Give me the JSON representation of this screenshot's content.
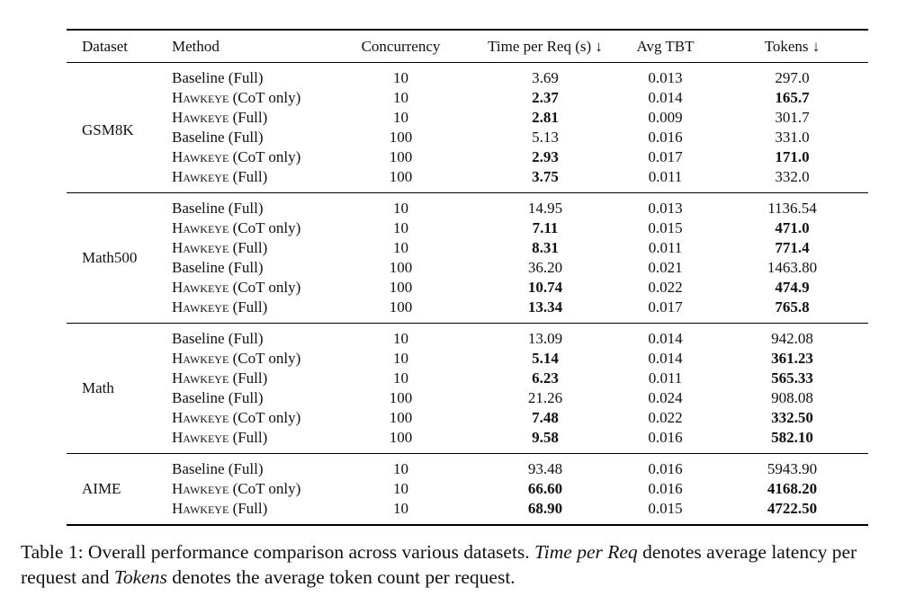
{
  "table": {
    "headers": [
      "Dataset",
      "Method",
      "Concurrency",
      "Time per Req (s) ↓",
      "Avg TBT",
      "Tokens ↓"
    ],
    "groups": [
      {
        "dataset": "GSM8K",
        "rows": [
          {
            "method": "Baseline (Full)",
            "concurrency": "10",
            "time": "3.69",
            "tbt": "0.013",
            "tokens": "297.0",
            "bold_time": false,
            "bold_tokens": false
          },
          {
            "method": "Hawkeye (CoT only)",
            "concurrency": "10",
            "time": "2.37",
            "tbt": "0.014",
            "tokens": "165.7",
            "bold_time": true,
            "bold_tokens": true
          },
          {
            "method": "Hawkeye (Full)",
            "concurrency": "10",
            "time": "2.81",
            "tbt": "0.009",
            "tokens": "301.7",
            "bold_time": true,
            "bold_tokens": false
          },
          {
            "method": "Baseline (Full)",
            "concurrency": "100",
            "time": "5.13",
            "tbt": "0.016",
            "tokens": "331.0",
            "bold_time": false,
            "bold_tokens": false
          },
          {
            "method": "Hawkeye (CoT only)",
            "concurrency": "100",
            "time": "2.93",
            "tbt": "0.017",
            "tokens": "171.0",
            "bold_time": true,
            "bold_tokens": true
          },
          {
            "method": "Hawkeye (Full)",
            "concurrency": "100",
            "time": "3.75",
            "tbt": "0.011",
            "tokens": "332.0",
            "bold_time": true,
            "bold_tokens": false
          }
        ]
      },
      {
        "dataset": "Math500",
        "rows": [
          {
            "method": "Baseline (Full)",
            "concurrency": "10",
            "time": "14.95",
            "tbt": "0.013",
            "tokens": "1136.54",
            "bold_time": false,
            "bold_tokens": false
          },
          {
            "method": "Hawkeye (CoT only)",
            "concurrency": "10",
            "time": "7.11",
            "tbt": "0.015",
            "tokens": "471.0",
            "bold_time": true,
            "bold_tokens": true
          },
          {
            "method": "Hawkeye (Full)",
            "concurrency": "10",
            "time": "8.31",
            "tbt": "0.011",
            "tokens": "771.4",
            "bold_time": true,
            "bold_tokens": true
          },
          {
            "method": "Baseline (Full)",
            "concurrency": "100",
            "time": "36.20",
            "tbt": "0.021",
            "tokens": "1463.80",
            "bold_time": false,
            "bold_tokens": false
          },
          {
            "method": "Hawkeye (CoT only)",
            "concurrency": "100",
            "time": "10.74",
            "tbt": "0.022",
            "tokens": "474.9",
            "bold_time": true,
            "bold_tokens": true
          },
          {
            "method": "Hawkeye (Full)",
            "concurrency": "100",
            "time": "13.34",
            "tbt": "0.017",
            "tokens": "765.8",
            "bold_time": true,
            "bold_tokens": true
          }
        ]
      },
      {
        "dataset": "Math",
        "rows": [
          {
            "method": "Baseline (Full)",
            "concurrency": "10",
            "time": "13.09",
            "tbt": "0.014",
            "tokens": "942.08",
            "bold_time": false,
            "bold_tokens": false
          },
          {
            "method": "Hawkeye (CoT only)",
            "concurrency": "10",
            "time": "5.14",
            "tbt": "0.014",
            "tokens": "361.23",
            "bold_time": true,
            "bold_tokens": true
          },
          {
            "method": "Hawkeye (Full)",
            "concurrency": "10",
            "time": "6.23",
            "tbt": "0.011",
            "tokens": "565.33",
            "bold_time": true,
            "bold_tokens": true
          },
          {
            "method": "Baseline (Full)",
            "concurrency": "100",
            "time": "21.26",
            "tbt": "0.024",
            "tokens": "908.08",
            "bold_time": false,
            "bold_tokens": false
          },
          {
            "method": "Hawkeye (CoT only)",
            "concurrency": "100",
            "time": "7.48",
            "tbt": "0.022",
            "tokens": "332.50",
            "bold_time": true,
            "bold_tokens": true
          },
          {
            "method": "Hawkeye (Full)",
            "concurrency": "100",
            "time": "9.58",
            "tbt": "0.016",
            "tokens": "582.10",
            "bold_time": true,
            "bold_tokens": true
          }
        ]
      },
      {
        "dataset": "AIME",
        "rows": [
          {
            "method": "Baseline (Full)",
            "concurrency": "10",
            "time": "93.48",
            "tbt": "0.016",
            "tokens": "5943.90",
            "bold_time": false,
            "bold_tokens": false
          },
          {
            "method": "Hawkeye (CoT only)",
            "concurrency": "10",
            "time": "66.60",
            "tbt": "0.016",
            "tokens": "4168.20",
            "bold_time": true,
            "bold_tokens": true
          },
          {
            "method": "Hawkeye (Full)",
            "concurrency": "10",
            "time": "68.90",
            "tbt": "0.015",
            "tokens": "4722.50",
            "bold_time": true,
            "bold_tokens": true
          }
        ]
      }
    ]
  },
  "caption": {
    "label": "Table 1:",
    "text1": "Overall performance comparison across various datasets.",
    "term1": "Time per Req",
    "text2": "denotes average latency per request and",
    "term2": "Tokens",
    "text3": "denotes the average token count per request."
  }
}
